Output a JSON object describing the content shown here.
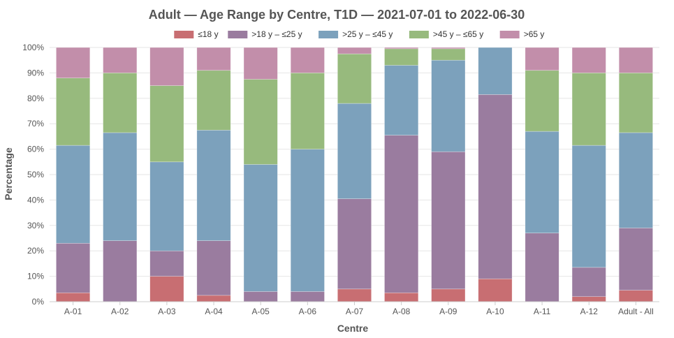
{
  "chart_data": {
    "type": "bar",
    "stacked": true,
    "title": "Adult — Age Range by Centre, T1D — 2021-07-01 to 2022-06-30",
    "xlabel": "Centre",
    "ylabel": "Percentage",
    "ylim": [
      0,
      100
    ],
    "y_ticks": [
      "0%",
      "10%",
      "20%",
      "30%",
      "40%",
      "50%",
      "60%",
      "70%",
      "80%",
      "90%",
      "100%"
    ],
    "grid": true,
    "legend_position": "top",
    "categories": [
      "A-01",
      "A-02",
      "A-03",
      "A-04",
      "A-05",
      "A-06",
      "A-07",
      "A-08",
      "A-09",
      "A-10",
      "A-11",
      "A-12",
      "Adult - All"
    ],
    "series": [
      {
        "name": "≤18 y",
        "color": "#c86e72",
        "values": [
          3.5,
          0,
          10,
          2.5,
          0,
          0,
          5,
          3.5,
          5,
          9,
          0,
          2,
          4.5
        ]
      },
      {
        "name": ">18 y – ≤25 y",
        "color": "#9a7c9f",
        "values": [
          19.5,
          24,
          10,
          21.5,
          4,
          4,
          35.5,
          62,
          54,
          72.5,
          27,
          11.5,
          24.5
        ]
      },
      {
        "name": ">25 y – ≤45 y",
        "color": "#7ca1bc",
        "values": [
          38.5,
          42.5,
          35,
          43.5,
          50,
          56,
          37.5,
          27.5,
          36,
          18.5,
          40,
          48,
          37.5
        ]
      },
      {
        "name": ">45 y – ≤65 y",
        "color": "#97ba7d",
        "values": [
          26.5,
          23.5,
          30,
          23.5,
          33.5,
          30,
          19.5,
          6.5,
          4.5,
          0,
          24,
          28.5,
          23.5
        ]
      },
      {
        "name": ">65 y",
        "color": "#c28eaa",
        "values": [
          12,
          10,
          15,
          9,
          12.5,
          10,
          2.5,
          0.5,
          0.5,
          0,
          9,
          10,
          10
        ]
      }
    ]
  }
}
